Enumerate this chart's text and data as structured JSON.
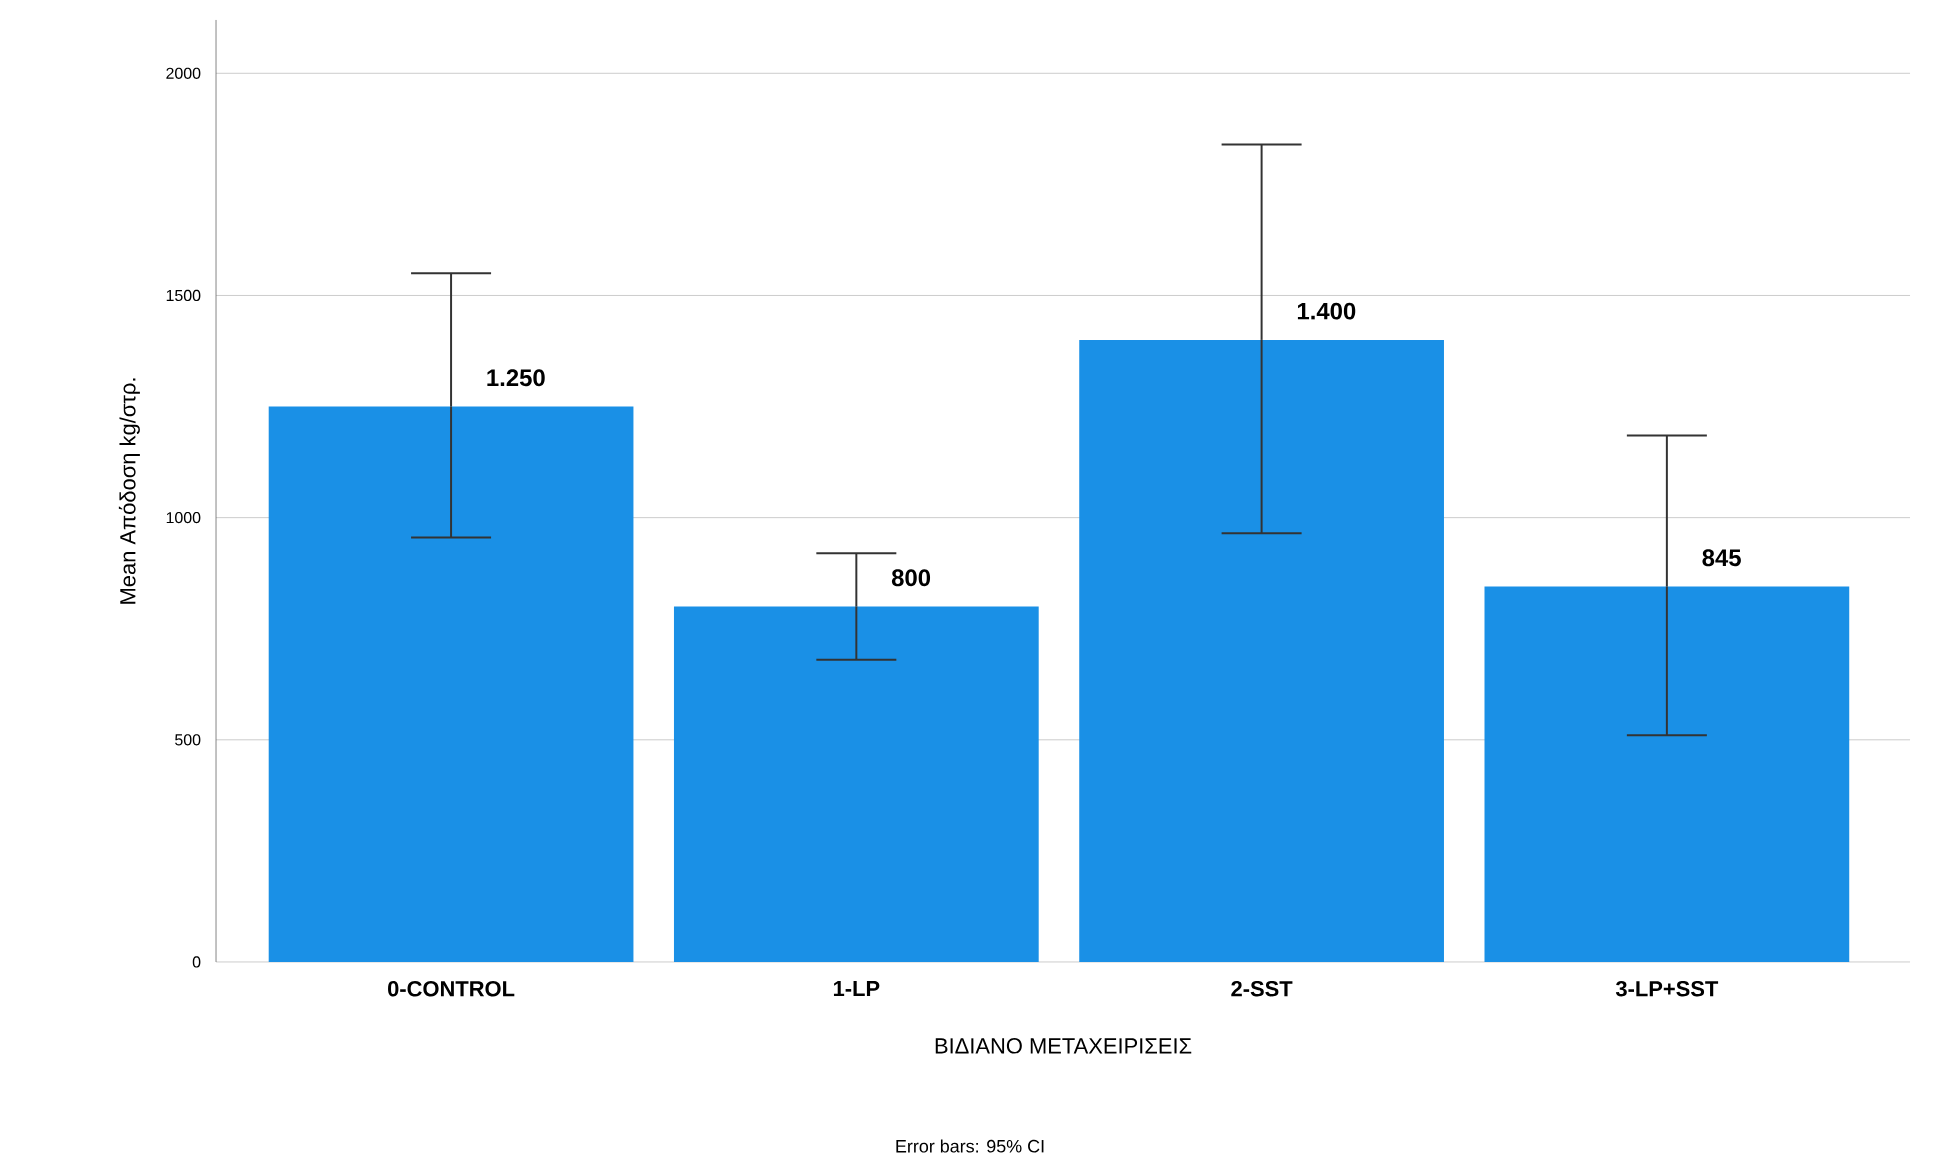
{
  "chart_data": {
    "type": "bar",
    "xlabel": "ΒΙΔΙΑΝΟ ΜΕΤΑΧΕΙΡΙΣΕΙΣ",
    "ylabel": "Mean Απόδοση kg/στρ.",
    "categories": [
      "0-CONTROL",
      "1-LP",
      "2-SST",
      "3-LP+SST"
    ],
    "values": [
      1250,
      800,
      1400,
      845
    ],
    "value_labels": [
      "1.250",
      "800",
      "1.400",
      "845"
    ],
    "errors": [
      [
        955,
        1550
      ],
      [
        680,
        920
      ],
      [
        965,
        1840
      ],
      [
        510,
        1185
      ]
    ],
    "color": "#1a90e6",
    "ylim": [
      0,
      2120
    ],
    "yticks": [
      0,
      500,
      1000,
      1500,
      2000
    ],
    "grid": "y",
    "annotations": [
      "Error bars: 95% CI"
    ]
  }
}
